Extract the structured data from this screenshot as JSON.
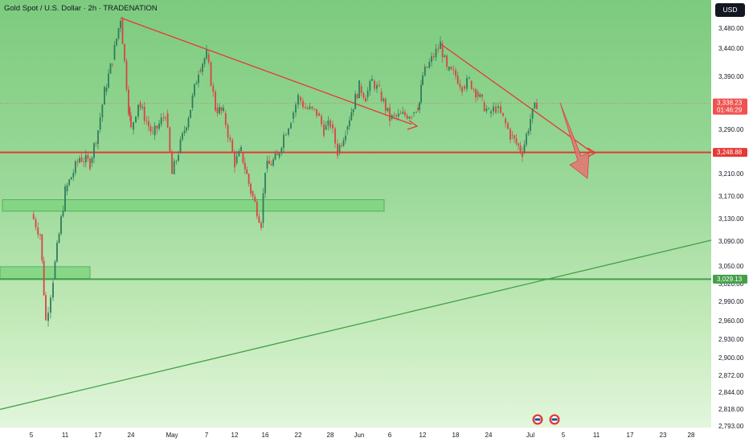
{
  "header": {
    "title": "Gold Spot / U.S. Dollar · 2h · TRADENATION",
    "currency_button": "USD"
  },
  "colors": {
    "accent_red": "#e53935",
    "support_green": "#43a047",
    "candle_up": "#2e7d5b",
    "candle_down": "#d64545",
    "text": "#131722"
  },
  "chart_data": {
    "type": "candlestick",
    "title": "Gold Spot / U.S. Dollar · 2h · TRADENATION",
    "xlabel": "",
    "ylabel": "",
    "currency": "USD",
    "ylim": [
      2793,
      3510
    ],
    "y_scale": "log",
    "grid": false,
    "y_ticks": [
      "3,480.00",
      "3,440.00",
      "3,390.00",
      "3,290.00",
      "3,210.00",
      "3,170.00",
      "3,130.00",
      "3,090.00",
      "3,050.00",
      "3,020.00",
      "2,990.00",
      "2,960.00",
      "2,930.00",
      "2,900.00",
      "2,872.00",
      "2,844.00",
      "2,818.00",
      "2,793.00"
    ],
    "x_ticks": [
      "5",
      "11",
      "17",
      "24",
      "May",
      "7",
      "12",
      "16",
      "22",
      "28",
      "Jun",
      "6",
      "12",
      "18",
      "24",
      "Jul",
      "5",
      "11",
      "17",
      "23",
      "28"
    ],
    "price_path": [
      [
        "5",
        3140
      ],
      [
        "7",
        3105
      ],
      [
        "9",
        2960
      ],
      [
        "10",
        3030
      ],
      [
        "11",
        3180
      ],
      [
        "14",
        3240
      ],
      [
        "16",
        3230
      ],
      [
        "17",
        3290
      ],
      [
        "18",
        3360
      ],
      [
        "21",
        3420
      ],
      [
        "22",
        3500
      ],
      [
        "23",
        3330
      ],
      [
        "24",
        3290
      ],
      [
        "25",
        3340
      ],
      [
        "28",
        3280
      ],
      [
        "29",
        3300
      ],
      [
        "30",
        3320
      ],
      [
        "May 1",
        3210
      ],
      [
        "May 2",
        3250
      ],
      [
        "May 5",
        3330
      ],
      [
        "May 6",
        3400
      ],
      [
        "May 7",
        3430
      ],
      [
        "May 8",
        3330
      ],
      [
        "May 9",
        3320
      ],
      [
        "May 12",
        3230
      ],
      [
        "May 13",
        3250
      ],
      [
        "May 14",
        3180
      ],
      [
        "May 15",
        3125
      ],
      [
        "May 16",
        3220
      ],
      [
        "May 19",
        3240
      ],
      [
        "May 20",
        3280
      ],
      [
        "May 21",
        3310
      ],
      [
        "May 22",
        3350
      ],
      [
        "May 23",
        3330
      ],
      [
        "May 26",
        3320
      ],
      [
        "May 27",
        3290
      ],
      [
        "May 28",
        3300
      ],
      [
        "May 29",
        3250
      ],
      [
        "May 30",
        3290
      ],
      [
        "Jun 2",
        3370
      ],
      [
        "Jun 3",
        3350
      ],
      [
        "Jun 4",
        3380
      ],
      [
        "Jun 5",
        3360
      ],
      [
        "Jun 6",
        3310
      ],
      [
        "Jun 9",
        3320
      ],
      [
        "Jun 10",
        3330
      ],
      [
        "Jun 11",
        3340
      ],
      [
        "Jun 12",
        3390
      ],
      [
        "Jun 13",
        3450
      ],
      [
        "Jun 16",
        3400
      ],
      [
        "Jun 17",
        3390
      ],
      [
        "Jun 18",
        3370
      ],
      [
        "Jun 19",
        3380
      ],
      [
        "Jun 20",
        3360
      ],
      [
        "Jun 23",
        3340
      ],
      [
        "Jun 24",
        3320
      ],
      [
        "Jun 25",
        3330
      ],
      [
        "Jun 26",
        3310
      ],
      [
        "Jun 27",
        3280
      ],
      [
        "Jun 30",
        3250
      ],
      [
        "Jul 1",
        3310
      ],
      [
        "Jul 2",
        3338.23
      ]
    ],
    "last_price": {
      "label": "3,338.23",
      "countdown": "01:46:29"
    },
    "horizontal_levels": [
      {
        "label": "3,248.88",
        "price": 3248.88,
        "color": "#e53935"
      },
      {
        "label": "3,029.13",
        "price": 3029.13,
        "color": "#43a047"
      }
    ],
    "zones": [
      {
        "name": "demand-zone-upper",
        "price_low": 3145,
        "price_high": 3165
      },
      {
        "name": "demand-zone-lower",
        "price_low": 3030,
        "price_high": 3050
      }
    ],
    "trendlines": [
      {
        "name": "upper-descending-trendline",
        "from": [
          "22",
          3500
        ],
        "to": [
          "Jun 9",
          3300
        ],
        "color": "#e53935"
      },
      {
        "name": "right-descending-trendline",
        "from": [
          "Jun 13",
          3450
        ],
        "to": [
          "Jul 9",
          3248.88
        ],
        "color": "#e53935"
      },
      {
        "name": "rising-support-trendline",
        "from": [
          "1",
          2818
        ],
        "to": [
          "Jul 31",
          3095
        ],
        "color": "#43a047"
      }
    ],
    "projection": {
      "name": "bearish-projection-arrow",
      "target": 3210,
      "color": "#e57373"
    },
    "event_markers": [
      "us-flag-icon",
      "us-flag-icon"
    ]
  }
}
